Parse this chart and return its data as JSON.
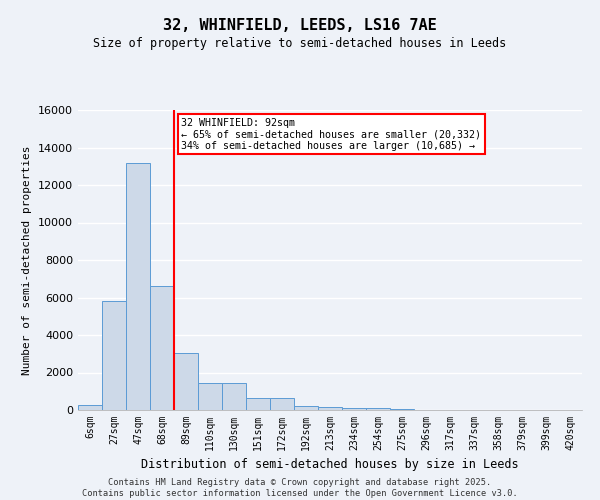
{
  "title": "32, WHINFIELD, LEEDS, LS16 7AE",
  "subtitle": "Size of property relative to semi-detached houses in Leeds",
  "xlabel": "Distribution of semi-detached houses by size in Leeds",
  "ylabel": "Number of semi-detached properties",
  "bar_labels": [
    "6sqm",
    "27sqm",
    "47sqm",
    "68sqm",
    "89sqm",
    "110sqm",
    "130sqm",
    "151sqm",
    "172sqm",
    "192sqm",
    "213sqm",
    "234sqm",
    "254sqm",
    "275sqm",
    "296sqm",
    "317sqm",
    "337sqm",
    "358sqm",
    "379sqm",
    "399sqm",
    "420sqm"
  ],
  "bar_values": [
    250,
    5800,
    13200,
    6600,
    3050,
    1450,
    1450,
    620,
    620,
    230,
    185,
    100,
    100,
    50,
    0,
    0,
    0,
    0,
    0,
    0,
    0
  ],
  "bar_color": "#cdd9e8",
  "bar_edge_color": "#5b9bd5",
  "vline_x_index": 4,
  "vline_color": "red",
  "ylim": [
    0,
    16000
  ],
  "yticks": [
    0,
    2000,
    4000,
    6000,
    8000,
    10000,
    12000,
    14000,
    16000
  ],
  "annotation_text": "32 WHINFIELD: 92sqm\n← 65% of semi-detached houses are smaller (20,332)\n34% of semi-detached houses are larger (10,685) →",
  "annotation_box_color": "white",
  "annotation_box_edge_color": "red",
  "footer_line1": "Contains HM Land Registry data © Crown copyright and database right 2025.",
  "footer_line2": "Contains public sector information licensed under the Open Government Licence v3.0.",
  "bg_color": "#eef2f8",
  "grid_color": "white"
}
